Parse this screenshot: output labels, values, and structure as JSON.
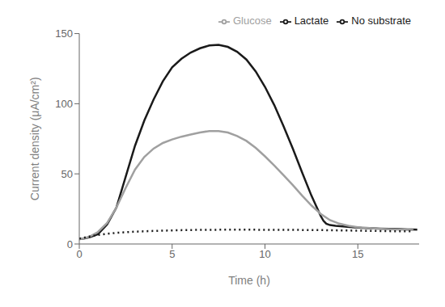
{
  "chart_data": {
    "type": "line",
    "xlabel": "Time (h)",
    "ylabel": "Current density (μA/cm²)",
    "xlim": [
      0,
      18.3
    ],
    "ylim": [
      0,
      150
    ],
    "xticks": [
      0,
      5,
      10,
      15
    ],
    "yticks": [
      0,
      50,
      100,
      150
    ],
    "grid": false,
    "legend": "upper right",
    "series": [
      {
        "name": "Lactate",
        "color": "#1a1a1a",
        "line_style": "solid",
        "x": [
          0,
          0.3,
          0.6,
          1.0,
          1.5,
          2.0,
          2.5,
          3.0,
          3.5,
          4.0,
          4.5,
          5.0,
          5.5,
          6.0,
          6.5,
          7.0,
          7.5,
          8.0,
          8.5,
          9.0,
          9.5,
          10.0,
          10.5,
          11.0,
          11.5,
          12.0,
          12.5,
          13.0,
          13.15,
          13.3,
          13.5,
          13.8,
          14.2,
          14.7,
          15.2,
          15.7,
          16.2,
          16.7,
          17.2,
          17.7,
          18.2
        ],
        "values": [
          3.5,
          4.0,
          5.0,
          7.0,
          14.0,
          26.0,
          48.0,
          70.0,
          88.0,
          103.0,
          116.0,
          126.0,
          132.0,
          136.5,
          139.5,
          141.5,
          142.0,
          140.5,
          137.0,
          131.5,
          123.0,
          112.0,
          99.0,
          84.0,
          68.0,
          51.0,
          34.5,
          20.0,
          16.5,
          14.5,
          13.5,
          13.0,
          12.5,
          12.0,
          11.5,
          11.2,
          11.0,
          10.8,
          10.6,
          10.4,
          10.2
        ]
      },
      {
        "name": "Glucose",
        "color": "#a0a0a0",
        "line_style": "solid",
        "x": [
          0,
          0.3,
          0.6,
          1.0,
          1.5,
          2.0,
          2.5,
          3.0,
          3.5,
          4.0,
          4.5,
          5.0,
          5.5,
          6.0,
          6.5,
          7.0,
          7.5,
          8.0,
          8.5,
          9.0,
          9.5,
          10.0,
          10.5,
          11.0,
          11.5,
          12.0,
          12.5,
          13.0,
          13.5,
          14.0,
          14.5,
          15.0,
          15.5,
          16.0,
          16.5,
          17.0,
          17.5,
          18.0
        ],
        "values": [
          3.5,
          4.2,
          5.5,
          8.5,
          15.0,
          26.0,
          40.0,
          53.0,
          62.0,
          68.0,
          72.0,
          74.5,
          76.5,
          78.0,
          79.5,
          80.5,
          80.5,
          79.5,
          77.0,
          73.5,
          68.5,
          62.5,
          56.0,
          49.0,
          42.0,
          34.5,
          27.5,
          21.5,
          17.0,
          14.5,
          13.0,
          12.0,
          11.5,
          11.0,
          10.7,
          10.4,
          10.2,
          10.0
        ]
      },
      {
        "name": "No substrate",
        "color": "#1a1a1a",
        "line_style": "dotted",
        "x": [
          0,
          0.5,
          1.0,
          2.0,
          3.0,
          4.0,
          5.0,
          6.0,
          7.0,
          8.0,
          9.0,
          10.0,
          11.0,
          12.0,
          13.0,
          14.0,
          15.0,
          16.0,
          17.0,
          18.0
        ],
        "values": [
          3.8,
          5.2,
          6.5,
          8.0,
          8.8,
          9.3,
          9.7,
          10.0,
          10.1,
          10.2,
          10.2,
          10.1,
          10.1,
          10.0,
          9.9,
          9.7,
          9.5,
          9.3,
          9.1,
          9.0
        ]
      }
    ]
  }
}
